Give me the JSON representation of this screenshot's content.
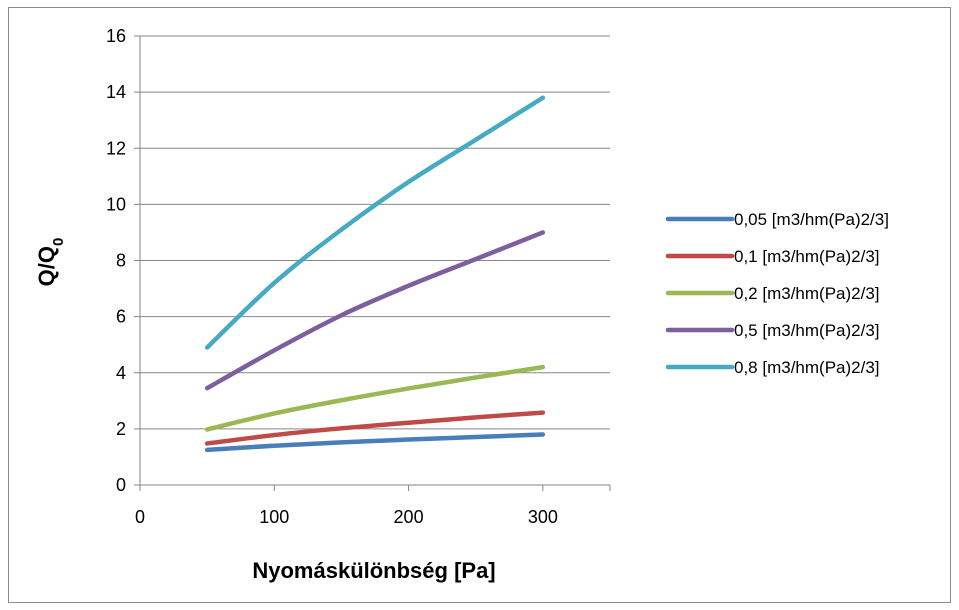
{
  "chart_data": {
    "type": "line",
    "title": "",
    "xlabel": "Nyomáskülönbség [Pa]",
    "ylabel_main": "Q/Q",
    "ylabel_sub": "0",
    "xlim": [
      0,
      350
    ],
    "ylim": [
      0,
      16
    ],
    "xticks": [
      0,
      100,
      200,
      300
    ],
    "yticks": [
      0,
      2,
      4,
      6,
      8,
      10,
      12,
      14,
      16
    ],
    "grid": "horizontal",
    "legend_position": "right",
    "x": [
      50,
      100,
      150,
      200,
      250,
      300
    ],
    "series": [
      {
        "name": "0,05 [m3/hm(Pa)2/3]",
        "color": "#4a7ebb",
        "values": [
          1.25,
          1.4,
          1.52,
          1.62,
          1.71,
          1.8
        ]
      },
      {
        "name": "0,1 [m3/hm(Pa)2/3]",
        "color": "#be4b48",
        "values": [
          1.48,
          1.78,
          2.02,
          2.22,
          2.41,
          2.58
        ]
      },
      {
        "name": "0,2 [m3/hm(Pa)2/3]",
        "color": "#98b954",
        "values": [
          1.98,
          2.55,
          3.02,
          3.44,
          3.83,
          4.2
        ]
      },
      {
        "name": "0,5 [m3/hm(Pa)2/3]",
        "color": "#7d5fa0",
        "values": [
          3.45,
          4.8,
          6.05,
          7.1,
          8.05,
          9.0
        ]
      },
      {
        "name": "0,8 [m3/hm(Pa)2/3]",
        "color": "#46aac5",
        "values": [
          4.9,
          7.2,
          9.1,
          10.8,
          12.3,
          13.8
        ]
      }
    ]
  }
}
